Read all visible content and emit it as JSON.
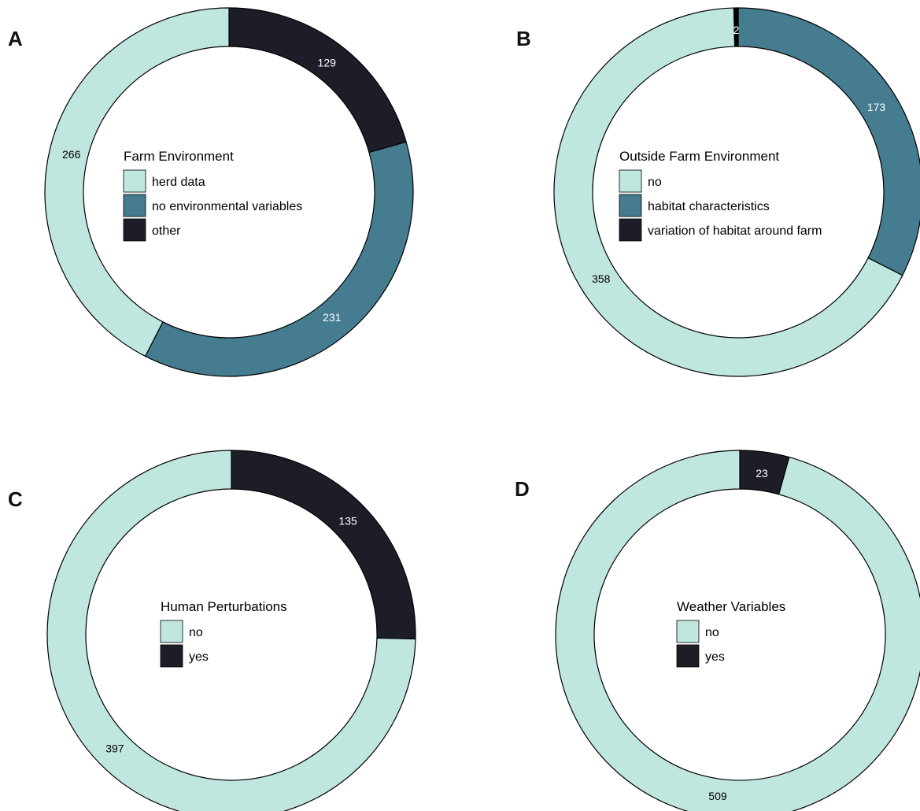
{
  "colors": {
    "light": "#bfe6df",
    "teal": "#457c90",
    "dark": "#1d1d27",
    "black": "#000000"
  },
  "chart_data": [
    {
      "panel": "A",
      "type": "pie",
      "donut": true,
      "legend_title": "Farm Environment",
      "legend": [
        {
          "label": "herd data",
          "color": "#bfe6df"
        },
        {
          "label": "no environmental variables",
          "color": "#457c90"
        },
        {
          "label": "other",
          "color": "#1d1d27"
        }
      ],
      "slices": [
        {
          "category": "other",
          "value": 129,
          "label": "129",
          "color": "#1d1d27",
          "label_color": "#ffffff"
        },
        {
          "category": "no environmental variables",
          "value": 231,
          "label": "231",
          "color": "#457c90",
          "label_color": "#ffffff"
        },
        {
          "category": "herd data",
          "value": 266,
          "label": "266",
          "color": "#bfe6df",
          "label_color": "#000000"
        }
      ]
    },
    {
      "panel": "B",
      "type": "pie",
      "donut": true,
      "legend_title": "Outside Farm Environment",
      "legend": [
        {
          "label": "no",
          "color": "#bfe6df"
        },
        {
          "label": "habitat characteristics",
          "color": "#457c90"
        },
        {
          "label": "variation of habitat around farm",
          "color": "#1d1d27"
        }
      ],
      "slices": [
        {
          "category": "habitat characteristics",
          "value": 173,
          "label": "173",
          "color": "#457c90",
          "label_color": "#ffffff"
        },
        {
          "category": "no",
          "value": 358,
          "label": "358",
          "color": "#bfe6df",
          "label_color": "#000000"
        },
        {
          "category": "variation of habitat around farm",
          "value": 2,
          "label": "2",
          "color": "#000000",
          "label_color": "#ffffff"
        }
      ]
    },
    {
      "panel": "C",
      "type": "pie",
      "donut": true,
      "legend_title": "Human Perturbations",
      "legend": [
        {
          "label": "no",
          "color": "#bfe6df"
        },
        {
          "label": "yes",
          "color": "#1d1d27"
        }
      ],
      "slices": [
        {
          "category": "yes",
          "value": 135,
          "label": "135",
          "color": "#1d1d27",
          "label_color": "#ffffff"
        },
        {
          "category": "no",
          "value": 397,
          "label": "397",
          "color": "#bfe6df",
          "label_color": "#000000"
        }
      ]
    },
    {
      "panel": "D",
      "type": "pie",
      "donut": true,
      "legend_title": "Weather Variables",
      "legend": [
        {
          "label": "no",
          "color": "#bfe6df"
        },
        {
          "label": "yes",
          "color": "#1d1d27"
        }
      ],
      "slices": [
        {
          "category": "yes",
          "value": 23,
          "label": "23",
          "color": "#1d1d27",
          "label_color": "#ffffff"
        },
        {
          "category": "no",
          "value": 509,
          "label": "509",
          "color": "#bfe6df",
          "label_color": "#000000"
        }
      ]
    }
  ]
}
